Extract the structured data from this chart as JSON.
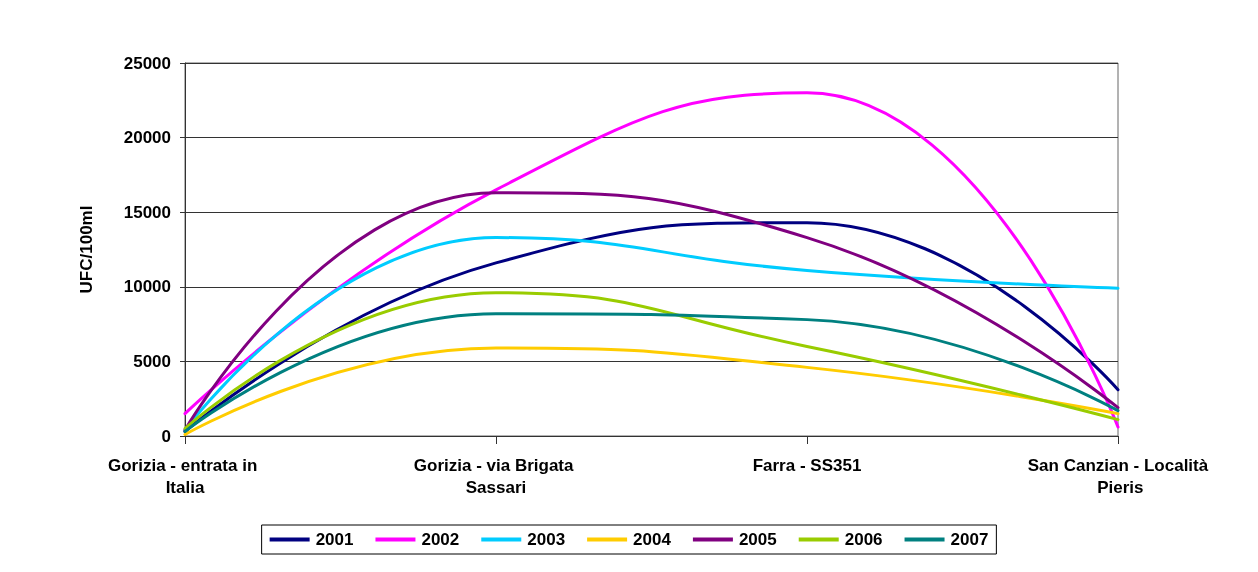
{
  "chart_data": {
    "type": "line",
    "ylabel": "UFC/100ml",
    "categories": [
      "Gorizia - entrata in Italia",
      "Gorizia - via Brigata Sassari",
      "Farra - SS351",
      "San Canzian - Località Pieris"
    ],
    "series": [
      {
        "name": "2001",
        "color": "#000080",
        "values": [
          300,
          11600,
          14300,
          3100
        ]
      },
      {
        "name": "2002",
        "color": "#ff00ff",
        "values": [
          1500,
          16500,
          23000,
          600
        ]
      },
      {
        "name": "2003",
        "color": "#00ccff",
        "values": [
          400,
          13300,
          11100,
          9900
        ]
      },
      {
        "name": "2004",
        "color": "#ffcc00",
        "values": [
          100,
          5900,
          4600,
          1500
        ]
      },
      {
        "name": "2005",
        "color": "#800080",
        "values": [
          400,
          16300,
          13300,
          1900
        ]
      },
      {
        "name": "2006",
        "color": "#99cc00",
        "values": [
          500,
          9600,
          6000,
          1100
        ]
      },
      {
        "name": "2007",
        "color": "#008080",
        "values": [
          300,
          8200,
          7800,
          1700
        ]
      }
    ],
    "ylim": [
      0,
      25000
    ],
    "yticks": [
      0,
      5000,
      10000,
      15000,
      20000,
      25000
    ],
    "grid": "y",
    "legend": "bottom",
    "marker": "none",
    "line_style": "solid"
  }
}
